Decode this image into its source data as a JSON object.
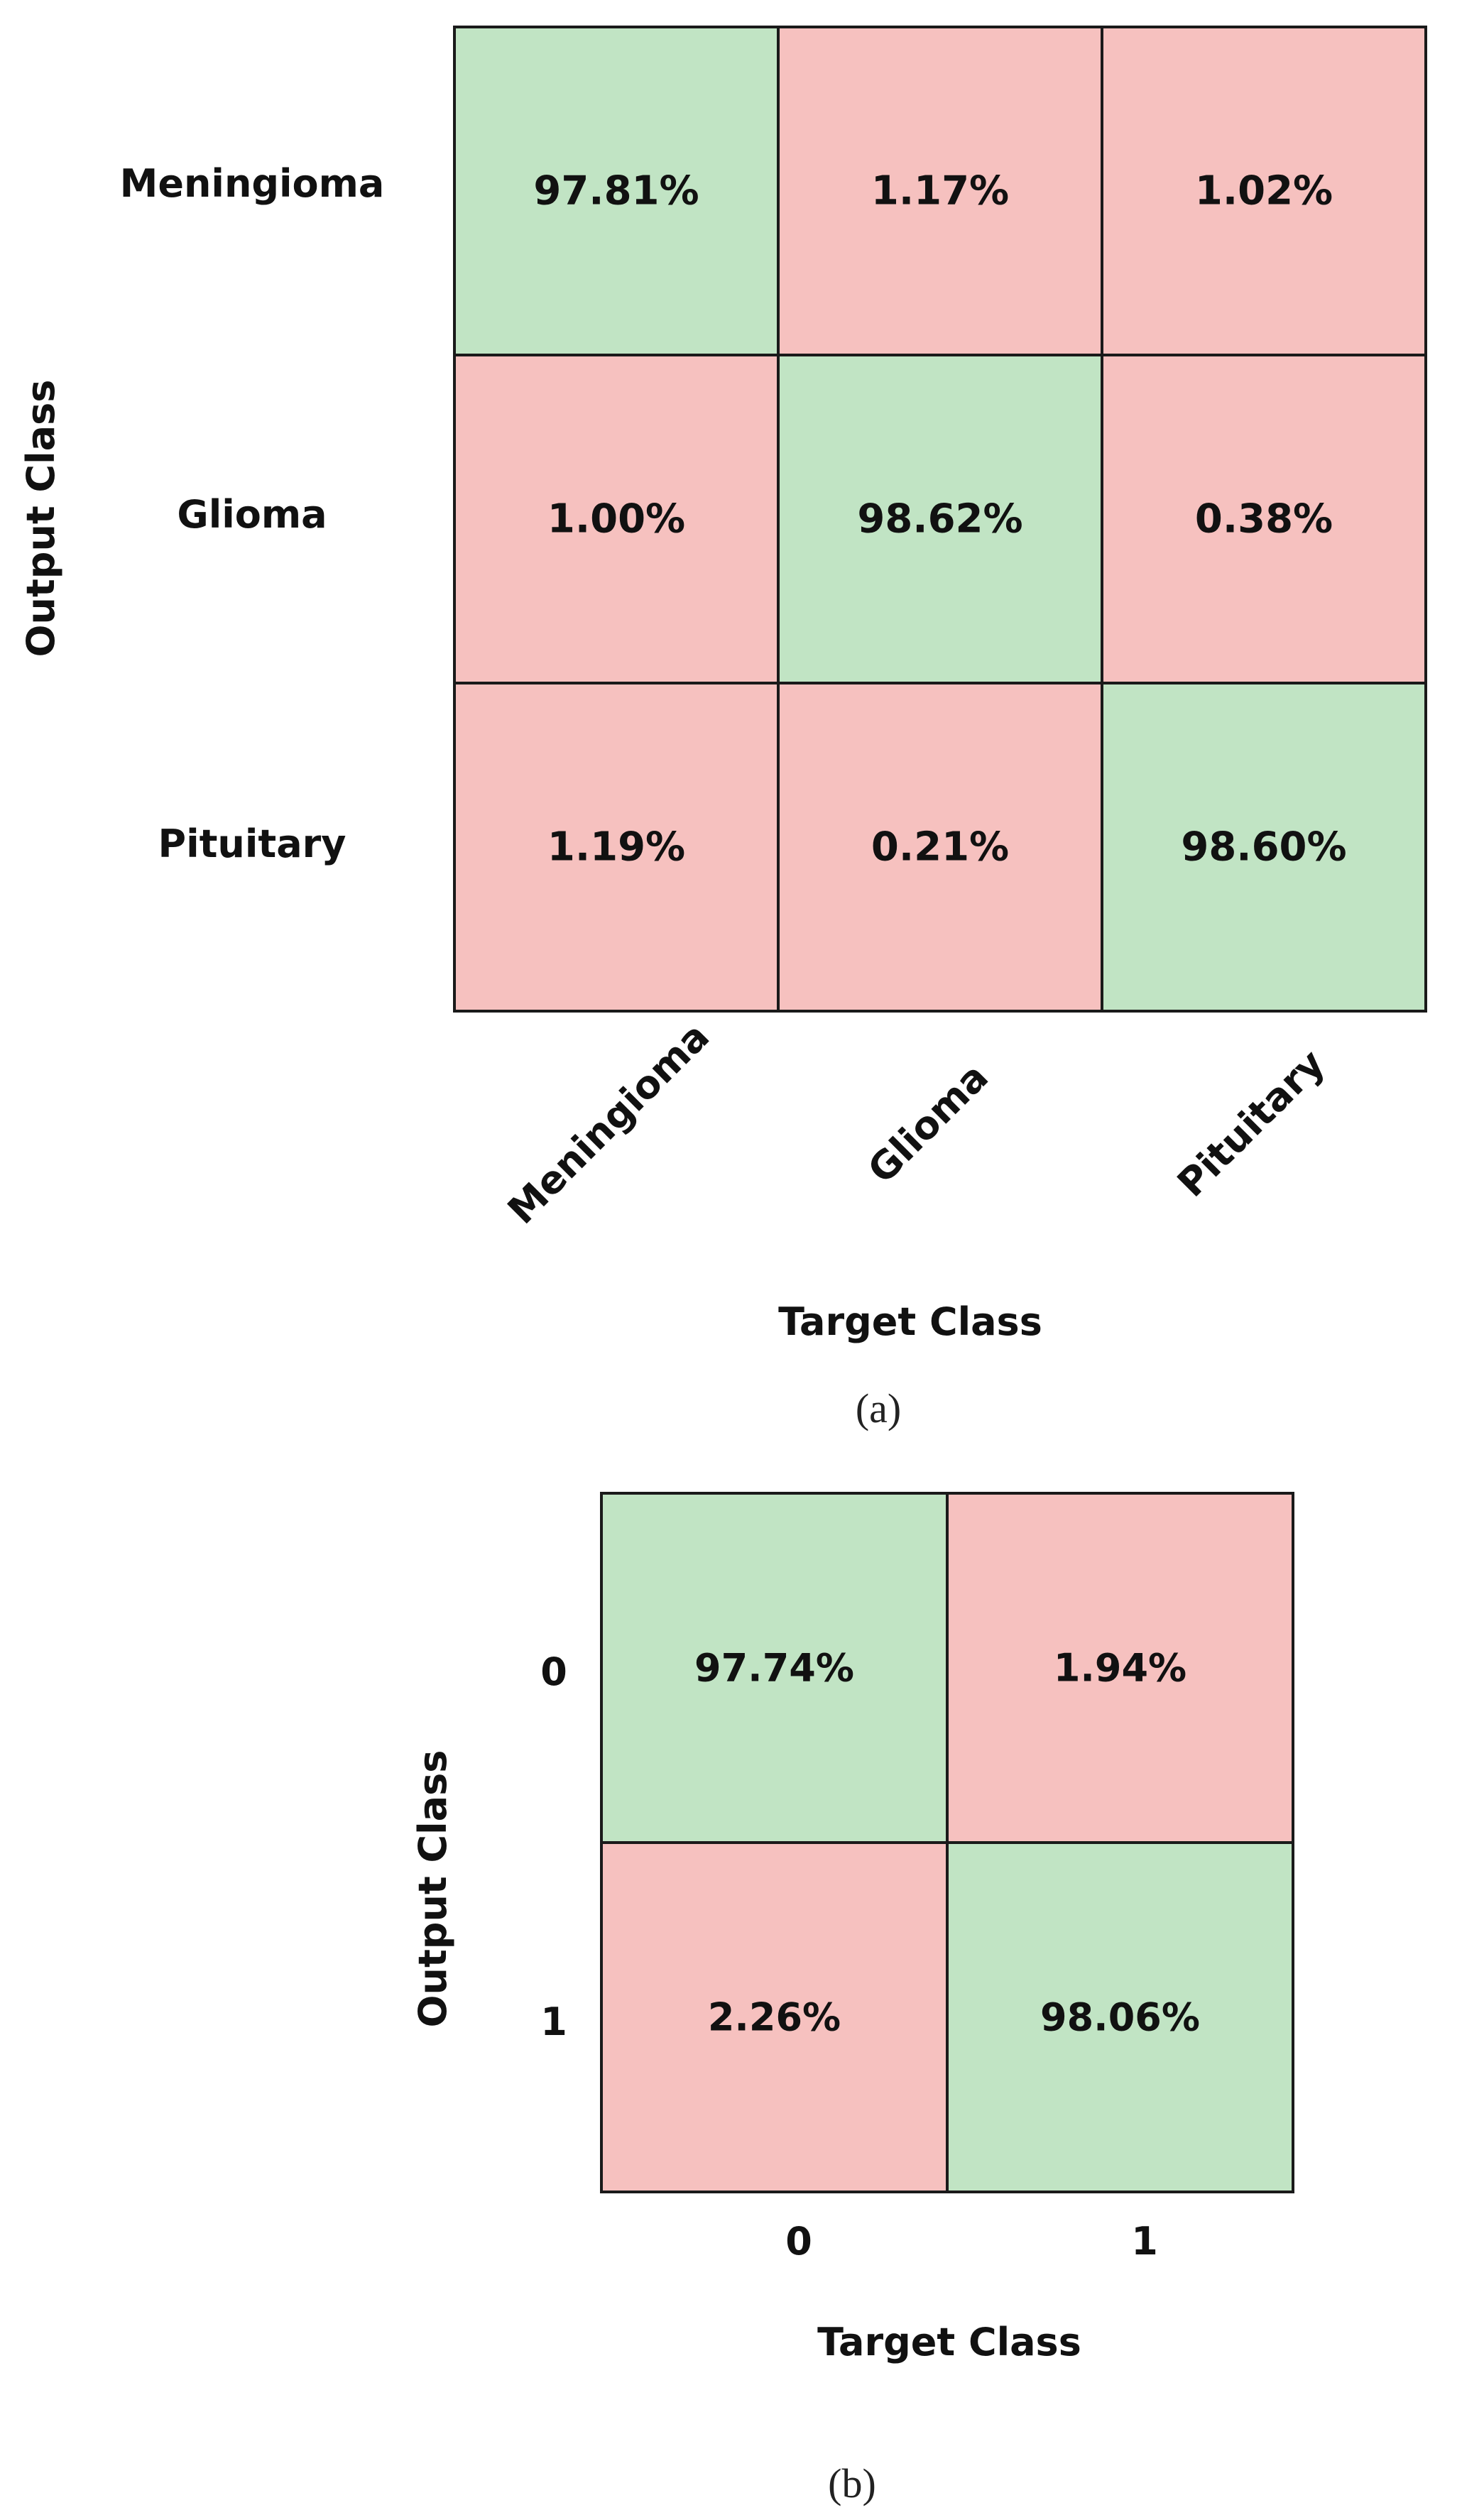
{
  "colors": {
    "diagonal": "#c1e4c4",
    "off_diagonal": "#f6c1bf",
    "grid_line": "#1a1a1a",
    "text": "#111111"
  },
  "chart_data": [
    {
      "type": "heatmap",
      "subtype": "confusion-matrix",
      "caption": "(a)",
      "xlabel": "Target Class",
      "ylabel": "Output Class",
      "row_labels": [
        "Meningioma",
        "Glioma",
        "Pituitary"
      ],
      "col_labels": [
        "Meningioma",
        "Glioma",
        "Pituitary"
      ],
      "col_label_rotation_deg": -45,
      "cells": [
        [
          "97.81%",
          "1.17%",
          "1.02%"
        ],
        [
          "1.00%",
          "98.62%",
          "0.38%"
        ],
        [
          "1.19%",
          "0.21%",
          "98.60%"
        ]
      ],
      "values": [
        [
          97.81,
          1.17,
          1.02
        ],
        [
          1.0,
          98.62,
          0.38
        ],
        [
          1.19,
          0.21,
          98.6
        ]
      ]
    },
    {
      "type": "heatmap",
      "subtype": "confusion-matrix",
      "caption": "(b)",
      "xlabel": "Target Class",
      "ylabel": "Output Class",
      "row_labels": [
        "0",
        "1"
      ],
      "col_labels": [
        "0",
        "1"
      ],
      "col_label_rotation_deg": 0,
      "cells": [
        [
          "97.74%",
          "1.94%"
        ],
        [
          "2.26%",
          "98.06%"
        ]
      ],
      "values": [
        [
          97.74,
          1.94
        ],
        [
          2.26,
          98.06
        ]
      ]
    }
  ]
}
